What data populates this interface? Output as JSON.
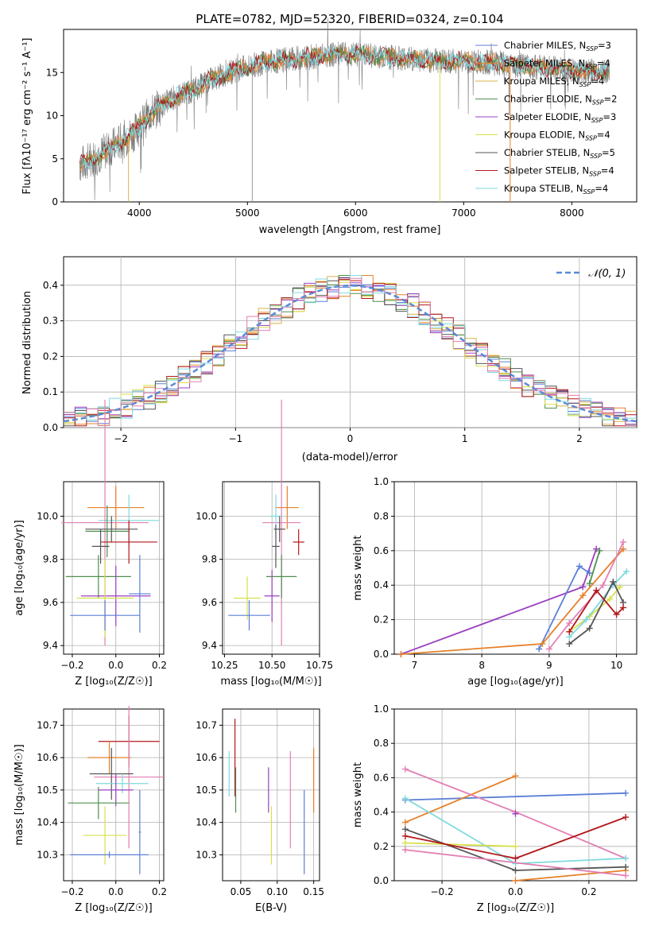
{
  "palette": {
    "chabrier_miles": "#5b7fd6",
    "salpeter_miles": "#e6802a",
    "kroupa_miles": "#d9b24a",
    "chabrier_elodie": "#4f8f4f",
    "salpeter_elodie": "#9b3fc0",
    "kroupa_elodie": "#d8e04a",
    "chabrier_stelib": "#555555",
    "salpeter_stelib": "#b3171c",
    "kroupa_stelib": "#7fd9dd",
    "pink": "#e27fb2",
    "normal_curve": "#5a8ad6"
  },
  "chart_data": [
    {
      "id": "spectrum",
      "type": "line",
      "title": "PLATE=0782, MJD=52320, FIBERID=0324, z=0.104",
      "xlabel": "wavelength [Angstrom, rest frame]",
      "ylabel": "Flux [fλ10⁻¹⁷ erg cm⁻² s⁻¹ A⁻¹]",
      "xlim": [
        3300,
        8600
      ],
      "ylim": [
        0,
        20
      ],
      "xticks": [
        4000,
        5000,
        6000,
        7000,
        8000
      ],
      "yticks": [
        0,
        5,
        10,
        15
      ],
      "legend_position": "top-right",
      "legend": [
        {
          "label": "Chabrier MILES, N",
          "sub": "SSP",
          "suffix": "=3",
          "color_key": "chabrier_miles"
        },
        {
          "label": "Salpeter MILES, N",
          "sub": "SSP",
          "suffix": "=4",
          "color_key": "salpeter_miles"
        },
        {
          "label": "Kroupa MILES, N",
          "sub": "SSP",
          "suffix": "=4",
          "color_key": "kroupa_miles"
        },
        {
          "label": "Chabrier ELODIE, N",
          "sub": "SSP",
          "suffix": "=2",
          "color_key": "chabrier_elodie"
        },
        {
          "label": "Salpeter ELODIE, N",
          "sub": "SSP",
          "suffix": "=3",
          "color_key": "salpeter_elodie"
        },
        {
          "label": "Kroupa ELODIE, N",
          "sub": "SSP",
          "suffix": "=4",
          "color_key": "kroupa_elodie"
        },
        {
          "label": "Chabrier STELIB, N",
          "sub": "SSP",
          "suffix": "=5",
          "color_key": "chabrier_stelib"
        },
        {
          "label": "Salpeter STELIB, N",
          "sub": "SSP",
          "suffix": "=4",
          "color_key": "salpeter_stelib"
        },
        {
          "label": "Kroupa STELIB, N",
          "sub": "SSP",
          "suffix": "=4",
          "color_key": "kroupa_stelib"
        }
      ],
      "continuum": [
        [
          3450,
          4.3
        ],
        [
          3600,
          5.2
        ],
        [
          3800,
          6.8
        ],
        [
          3950,
          8.0
        ],
        [
          4100,
          10.2
        ],
        [
          4300,
          12.0
        ],
        [
          4500,
          13.0
        ],
        [
          4700,
          14.4
        ],
        [
          4900,
          15.3
        ],
        [
          5100,
          16.0
        ],
        [
          5300,
          16.4
        ],
        [
          5500,
          16.7
        ],
        [
          5800,
          17.1
        ],
        [
          6100,
          17.0
        ],
        [
          6400,
          16.7
        ],
        [
          6700,
          16.4
        ],
        [
          7000,
          16.3
        ],
        [
          7300,
          16.1
        ],
        [
          7600,
          15.7
        ],
        [
          7900,
          15.4
        ],
        [
          8200,
          15.1
        ],
        [
          8350,
          15.0
        ]
      ],
      "spikes": [
        {
          "x": 3900,
          "y": 0
        },
        {
          "x": 5045,
          "y": 0
        },
        {
          "x": 6780,
          "y": 0
        },
        {
          "x": 7430,
          "y": 0
        }
      ]
    },
    {
      "id": "residuals",
      "type": "histogram",
      "xlabel": "(data-model)/error",
      "ylabel": "Normed distribution",
      "xlim": [
        -2.5,
        2.5
      ],
      "ylim": [
        0,
        0.48
      ],
      "xticks": [
        -2,
        -1,
        0,
        1,
        2
      ],
      "yticks": [
        0.0,
        0.1,
        0.2,
        0.3,
        0.4
      ],
      "grid": true,
      "legend": {
        "label": "𝒩(0, 1)",
        "position": "top-right"
      },
      "bin_width": 0.1
    },
    {
      "id": "age_vs_Z",
      "type": "scatter",
      "xlabel": "Z [log₁₀(Z/Z☉)]",
      "ylabel": "age  [log₁₀(age/yr)]",
      "xlim": [
        -0.24,
        0.22
      ],
      "ylim": [
        9.36,
        10.16
      ],
      "xticks": [
        -0.2,
        0.0,
        0.2
      ],
      "yticks": [
        9.4,
        9.6,
        9.8,
        10.0
      ],
      "grid": true,
      "points": [
        {
          "color_key": "salpeter_miles",
          "x": 0.0,
          "y": 10.04,
          "xerr": 0.13,
          "yerr": 0.1
        },
        {
          "color_key": "kroupa_stelib",
          "x": 0.06,
          "y": 9.98,
          "xerr": 0.14,
          "yerr": 0.12
        },
        {
          "color_key": "pink",
          "x": -0.05,
          "y": 9.97,
          "xerr": 0.2,
          "yerr": 0.57
        },
        {
          "color_key": "chabrier_stelib",
          "x": -0.02,
          "y": 9.94,
          "xerr": 0.12,
          "yerr": 0.06
        },
        {
          "color_key": "chabrier_elodie",
          "x": -0.04,
          "y": 9.93,
          "xerr": 0.1,
          "yerr": 0.12
        },
        {
          "color_key": "salpeter_stelib",
          "x": 0.06,
          "y": 9.88,
          "xerr": 0.13,
          "yerr": 0.1
        },
        {
          "color_key": "chabrier_stelib",
          "x": -0.07,
          "y": 9.86,
          "xerr": 0.04,
          "yerr": 0.08
        },
        {
          "color_key": "chabrier_elodie",
          "x": -0.08,
          "y": 9.72,
          "xerr": 0.15,
          "yerr": 0.1
        },
        {
          "color_key": "salpeter_elodie",
          "x": 0.0,
          "y": 9.63,
          "xerr": 0.16,
          "yerr": 0.14
        },
        {
          "color_key": "kroupa_elodie",
          "x": -0.05,
          "y": 9.62,
          "xerr": 0.13,
          "yerr": 0.18
        },
        {
          "color_key": "chabrier_miles",
          "x": 0.11,
          "y": 9.64,
          "xerr": 0.05,
          "yerr": 0.18
        },
        {
          "color_key": "chabrier_miles",
          "x": -0.05,
          "y": 9.54,
          "xerr": 0.16,
          "yerr": 0.07
        }
      ]
    },
    {
      "id": "age_vs_mass",
      "type": "scatter",
      "xlabel": "mass [log₁₀(M/M☉)]",
      "ylabel": "",
      "xlim": [
        10.24,
        10.75
      ],
      "ylim": [
        9.36,
        10.16
      ],
      "xticks": [
        10.25,
        10.5,
        10.75
      ],
      "yticks": [
        9.4,
        9.6,
        9.8,
        10.0
      ],
      "grid": true,
      "points": [
        {
          "color_key": "salpeter_miles",
          "x": 10.58,
          "y": 10.04,
          "xerr": 0.06,
          "yerr": 0.1
        },
        {
          "color_key": "pink",
          "x": 10.55,
          "y": 9.97,
          "xerr": 0.1,
          "yerr": 0.57
        },
        {
          "color_key": "kroupa_stelib",
          "x": 10.52,
          "y": 10.0,
          "xerr": 0.03,
          "yerr": 0.1
        },
        {
          "color_key": "chabrier_stelib",
          "x": 10.54,
          "y": 9.94,
          "xerr": 0.03,
          "yerr": 0.06
        },
        {
          "color_key": "salpeter_stelib",
          "x": 10.64,
          "y": 9.88,
          "xerr": 0.03,
          "yerr": 0.06
        },
        {
          "color_key": "chabrier_stelib",
          "x": 10.52,
          "y": 9.86,
          "xerr": 0.02,
          "yerr": 0.1
        },
        {
          "color_key": "chabrier_elodie",
          "x": 10.55,
          "y": 9.72,
          "xerr": 0.08,
          "yerr": 0.1
        },
        {
          "color_key": "salpeter_elodie",
          "x": 10.5,
          "y": 9.63,
          "xerr": 0.04,
          "yerr": 0.12
        },
        {
          "color_key": "kroupa_elodie",
          "x": 10.37,
          "y": 9.62,
          "xerr": 0.07,
          "yerr": 0.1
        },
        {
          "color_key": "chabrier_miles",
          "x": 10.38,
          "y": 9.54,
          "xerr": 0.11,
          "yerr": 0.07
        }
      ]
    },
    {
      "id": "weight_vs_age",
      "type": "line",
      "xlabel": "age  [log₁₀(age/yr)]",
      "ylabel": "mass weight",
      "xlim": [
        6.7,
        10.3
      ],
      "ylim": [
        0,
        1.0
      ],
      "xticks": [
        7,
        8,
        9,
        10
      ],
      "yticks": [
        0.0,
        0.2,
        0.4,
        0.6,
        0.8,
        1.0
      ],
      "grid": true,
      "series": [
        {
          "color_key": "salpeter_elodie",
          "x": [
            6.8,
            9.5,
            9.7
          ],
          "y": [
            0.0,
            0.39,
            0.61
          ]
        },
        {
          "color_key": "chabrier_miles",
          "x": [
            8.85,
            9.45,
            9.6
          ],
          "y": [
            0.03,
            0.51,
            0.47
          ]
        },
        {
          "color_key": "salpeter_miles",
          "x": [
            6.8,
            8.9,
            9.5,
            10.1
          ],
          "y": [
            0.0,
            0.06,
            0.34,
            0.61
          ]
        },
        {
          "color_key": "chabrier_elodie",
          "x": [
            9.6,
            9.75
          ],
          "y": [
            0.41,
            0.6
          ]
        },
        {
          "color_key": "pink",
          "x": [
            9.0,
            9.3,
            9.8,
            10.1
          ],
          "y": [
            0.03,
            0.18,
            0.4,
            0.65
          ]
        },
        {
          "color_key": "kroupa_elodie",
          "x": [
            9.3,
            9.6,
            9.9,
            10.05
          ],
          "y": [
            0.13,
            0.22,
            0.32,
            0.39
          ]
        },
        {
          "color_key": "kroupa_stelib",
          "x": [
            9.3,
            9.55,
            9.95,
            10.15
          ],
          "y": [
            0.1,
            0.2,
            0.4,
            0.48
          ]
        },
        {
          "color_key": "chabrier_stelib",
          "x": [
            9.3,
            9.6,
            9.95,
            10.1
          ],
          "y": [
            0.06,
            0.15,
            0.42,
            0.3
          ]
        },
        {
          "color_key": "salpeter_stelib",
          "x": [
            9.3,
            9.7,
            10.0,
            10.1
          ],
          "y": [
            0.13,
            0.37,
            0.23,
            0.27
          ]
        }
      ]
    },
    {
      "id": "mass_vs_Z",
      "type": "scatter",
      "xlabel": "Z [log₁₀(Z/Z☉)]",
      "ylabel": "mass [log₁₀(M/M☉)]",
      "xlim": [
        -0.24,
        0.22
      ],
      "ylim": [
        10.22,
        10.75
      ],
      "xticks": [
        -0.2,
        0.0,
        0.2
      ],
      "yticks": [
        10.3,
        10.4,
        10.5,
        10.6,
        10.7
      ],
      "grid": true,
      "points": [
        {
          "color_key": "salpeter_stelib",
          "x": 0.06,
          "y": 10.65,
          "xerr": 0.14,
          "yerr": 0.08
        },
        {
          "color_key": "salpeter_miles",
          "x": -0.03,
          "y": 10.6,
          "xerr": 0.1,
          "yerr": 0.05
        },
        {
          "color_key": "pink",
          "x": 0.06,
          "y": 10.54,
          "xerr": 0.16,
          "yerr": 0.22
        },
        {
          "color_key": "chabrier_stelib",
          "x": -0.02,
          "y": 10.55,
          "xerr": 0.1,
          "yerr": 0.08
        },
        {
          "color_key": "kroupa_stelib",
          "x": 0.03,
          "y": 10.52,
          "xerr": 0.12,
          "yerr": 0.03
        },
        {
          "color_key": "salpeter_elodie",
          "x": 0.0,
          "y": 10.5,
          "xerr": 0.08,
          "yerr": 0.05
        },
        {
          "color_key": "chabrier_elodie",
          "x": -0.08,
          "y": 10.46,
          "xerr": 0.14,
          "yerr": 0.05
        },
        {
          "color_key": "kroupa_elodie",
          "x": -0.05,
          "y": 10.36,
          "xerr": 0.1,
          "yerr": 0.09
        },
        {
          "color_key": "chabrier_miles",
          "x": -0.03,
          "y": 10.3,
          "xerr": 0.18,
          "yerr": 0.01
        },
        {
          "color_key": "chabrier_miles",
          "x": 0.11,
          "y": 10.37,
          "xerr": 0.005,
          "yerr": 0.13
        }
      ]
    },
    {
      "id": "mass_vs_ebv",
      "type": "scatter",
      "xlabel": "E(B-V)",
      "ylabel": "",
      "xlim": [
        0.025,
        0.158
      ],
      "ylim": [
        10.22,
        10.75
      ],
      "xticks": [
        0.05,
        0.1,
        0.15
      ],
      "yticks": [
        10.3,
        10.4,
        10.5,
        10.6,
        10.7
      ],
      "grid": true,
      "points": [
        {
          "color_key": "kroupa_stelib",
          "x": 0.034,
          "y": 10.55,
          "xerr": 0,
          "yerr": 0.07
        },
        {
          "color_key": "salpeter_stelib",
          "x": 0.042,
          "y": 10.6,
          "xerr": 0,
          "yerr": 0.12
        },
        {
          "color_key": "chabrier_elodie",
          "x": 0.043,
          "y": 10.5,
          "xerr": 0,
          "yerr": 0.07
        },
        {
          "color_key": "salpeter_elodie",
          "x": 0.088,
          "y": 10.5,
          "xerr": 0,
          "yerr": 0.07
        },
        {
          "color_key": "kroupa_elodie",
          "x": 0.092,
          "y": 10.36,
          "xerr": 0,
          "yerr": 0.09
        },
        {
          "color_key": "pink",
          "x": 0.118,
          "y": 10.47,
          "xerr": 0,
          "yerr": 0.15
        },
        {
          "color_key": "chabrier_miles",
          "x": 0.137,
          "y": 10.37,
          "xerr": 0,
          "yerr": 0.13
        },
        {
          "color_key": "salpeter_miles",
          "x": 0.15,
          "y": 10.53,
          "xerr": 0,
          "yerr": 0.1
        }
      ]
    },
    {
      "id": "weight_vs_Z",
      "type": "line",
      "xlabel": "Z [log₁₀(Z/Z☉)]",
      "ylabel": "mass weight",
      "xlim": [
        -0.33,
        0.33
      ],
      "ylim": [
        0,
        1.0
      ],
      "xticks": [
        -0.2,
        0.0,
        0.2
      ],
      "yticks": [
        0.0,
        0.2,
        0.4,
        0.6,
        0.8,
        1.0
      ],
      "grid": true,
      "series": [
        {
          "color_key": "chabrier_miles",
          "x": [
            -0.3,
            0.3
          ],
          "y": [
            0.47,
            0.51
          ]
        },
        {
          "color_key": "salpeter_miles",
          "x": [
            -0.3,
            0.0
          ],
          "y": [
            0.34,
            0.61
          ]
        },
        {
          "color_key": "salpeter_miles",
          "x": [
            0.0,
            0.3
          ],
          "y": [
            0.0,
            0.06
          ]
        },
        {
          "color_key": "pink",
          "x": [
            -0.3,
            0.0,
            0.3
          ],
          "y": [
            0.65,
            0.4,
            0.13
          ]
        },
        {
          "color_key": "kroupa_stelib",
          "x": [
            -0.3,
            0.0,
            0.3
          ],
          "y": [
            0.48,
            0.1,
            0.13
          ]
        },
        {
          "color_key": "kroupa_elodie",
          "x": [
            -0.3,
            0.0
          ],
          "y": [
            0.22,
            0.2
          ]
        },
        {
          "color_key": "chabrier_stelib",
          "x": [
            -0.3,
            0.0,
            0.3
          ],
          "y": [
            0.3,
            0.06,
            0.08
          ]
        },
        {
          "color_key": "salpeter_stelib",
          "x": [
            -0.3,
            0.0,
            0.3
          ],
          "y": [
            0.26,
            0.13,
            0.37
          ]
        },
        {
          "color_key": "salpeter_elodie",
          "x": [
            0.0
          ],
          "y": [
            0.39
          ]
        },
        {
          "color_key": "pink",
          "x": [
            -0.3,
            0.3
          ],
          "y": [
            0.18,
            0.03
          ]
        }
      ]
    }
  ]
}
